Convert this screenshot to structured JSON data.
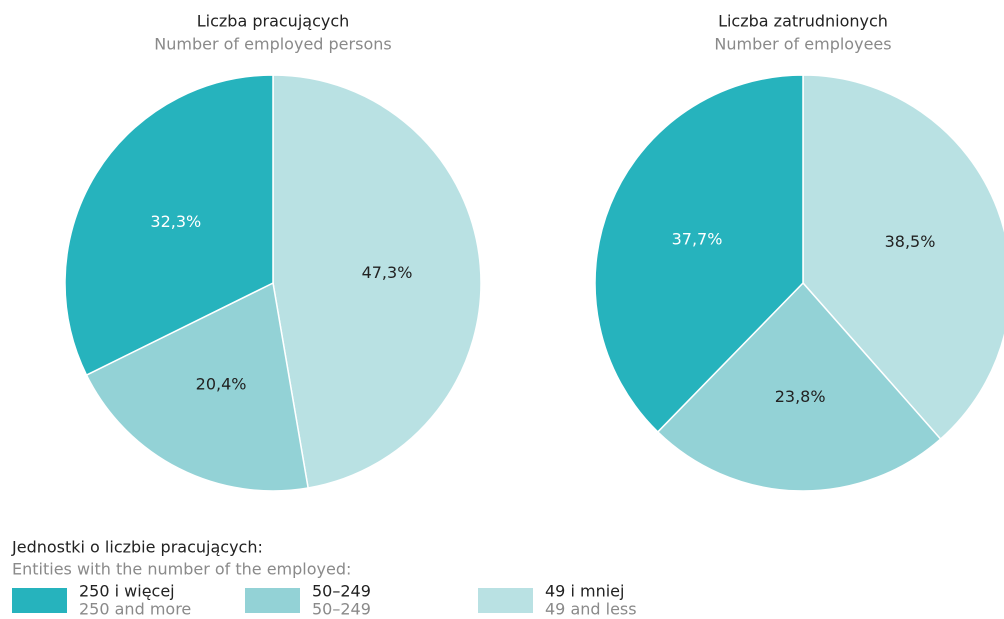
{
  "chart_data": [
    {
      "type": "pie",
      "title": "Liczba pracujących",
      "subtitle": "Number of employed persons",
      "values": [
        32.3,
        20.4,
        47.3
      ],
      "value_labels": [
        "32,3%",
        "20,4%",
        "47,3%"
      ]
    },
    {
      "type": "pie",
      "title": "Liczba zatrudnionych",
      "subtitle": "Number of employees",
      "values": [
        37.7,
        23.8,
        38.5
      ],
      "value_labels": [
        "37,7%",
        "23,8%",
        "38,5%"
      ]
    }
  ],
  "legend": {
    "title": "Jednostki o liczbie pracujących:",
    "subtitle": "Entities with the number of the employed:",
    "items": [
      {
        "label": "250 i więcej",
        "sublabel": "250 and more",
        "color": "#26b3bd"
      },
      {
        "label": "50–249",
        "sublabel": "50–249",
        "color": "#93d2d6"
      },
      {
        "label": "49 i mniej",
        "sublabel": "49 and less",
        "color": "#b9e1e3"
      }
    ]
  }
}
